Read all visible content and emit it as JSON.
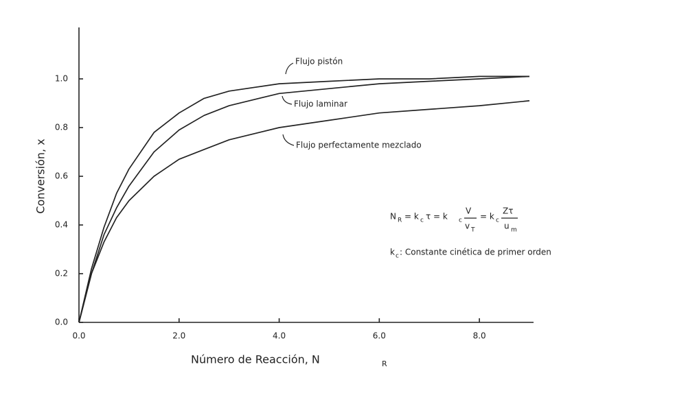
{
  "chart_data": {
    "type": "line",
    "xlabel": "Número de Reacción, N",
    "xlabel_sub": "R",
    "ylabel": "Conversión, x",
    "x": [
      0,
      0.25,
      0.5,
      0.75,
      1,
      1.5,
      2,
      2.5,
      3,
      4,
      5,
      6,
      7,
      8,
      9
    ],
    "series": [
      {
        "name": "Flujo pistón",
        "color": "#222222",
        "values": [
          0,
          0.22,
          0.39,
          0.53,
          0.63,
          0.78,
          0.86,
          0.92,
          0.95,
          0.98,
          0.99,
          1.0,
          1.0,
          1.01,
          1.01
        ]
      },
      {
        "name": "Flujo laminar",
        "color": "#222222",
        "values": [
          0,
          0.2,
          0.36,
          0.47,
          0.56,
          0.7,
          0.79,
          0.85,
          0.89,
          0.94,
          0.96,
          0.98,
          0.99,
          1.0,
          1.01
        ]
      },
      {
        "name": "Flujo perfectamente mezclado",
        "color": "#222222",
        "values": [
          0,
          0.2,
          0.33,
          0.43,
          0.5,
          0.6,
          0.67,
          0.71,
          0.75,
          0.8,
          0.83,
          0.86,
          0.875,
          0.89,
          0.91
        ]
      }
    ],
    "xlim": [
      0,
      9
    ],
    "xticks": [
      {
        "value": 0,
        "label": "0.0"
      },
      {
        "value": 2,
        "label": "2.0"
      },
      {
        "value": 4,
        "label": "4.0"
      },
      {
        "value": 6,
        "label": "6.0"
      },
      {
        "value": 8,
        "label": "8.0"
      }
    ],
    "ylim": [
      0,
      1.2
    ],
    "yticks": [
      {
        "value": 0,
        "label": "0.0"
      },
      0.2,
      0.4,
      0.6,
      0.8,
      {
        "value": 1,
        "label": "1.0"
      }
    ],
    "grid": false,
    "equation": [
      "N",
      "R",
      "= k",
      "c",
      "τ = k",
      "c",
      "V",
      "v",
      "T",
      "= k",
      "c",
      "Zτ",
      "u",
      "m"
    ],
    "note": [
      "k",
      "c",
      ": Constante cinética de primer orden"
    ]
  }
}
